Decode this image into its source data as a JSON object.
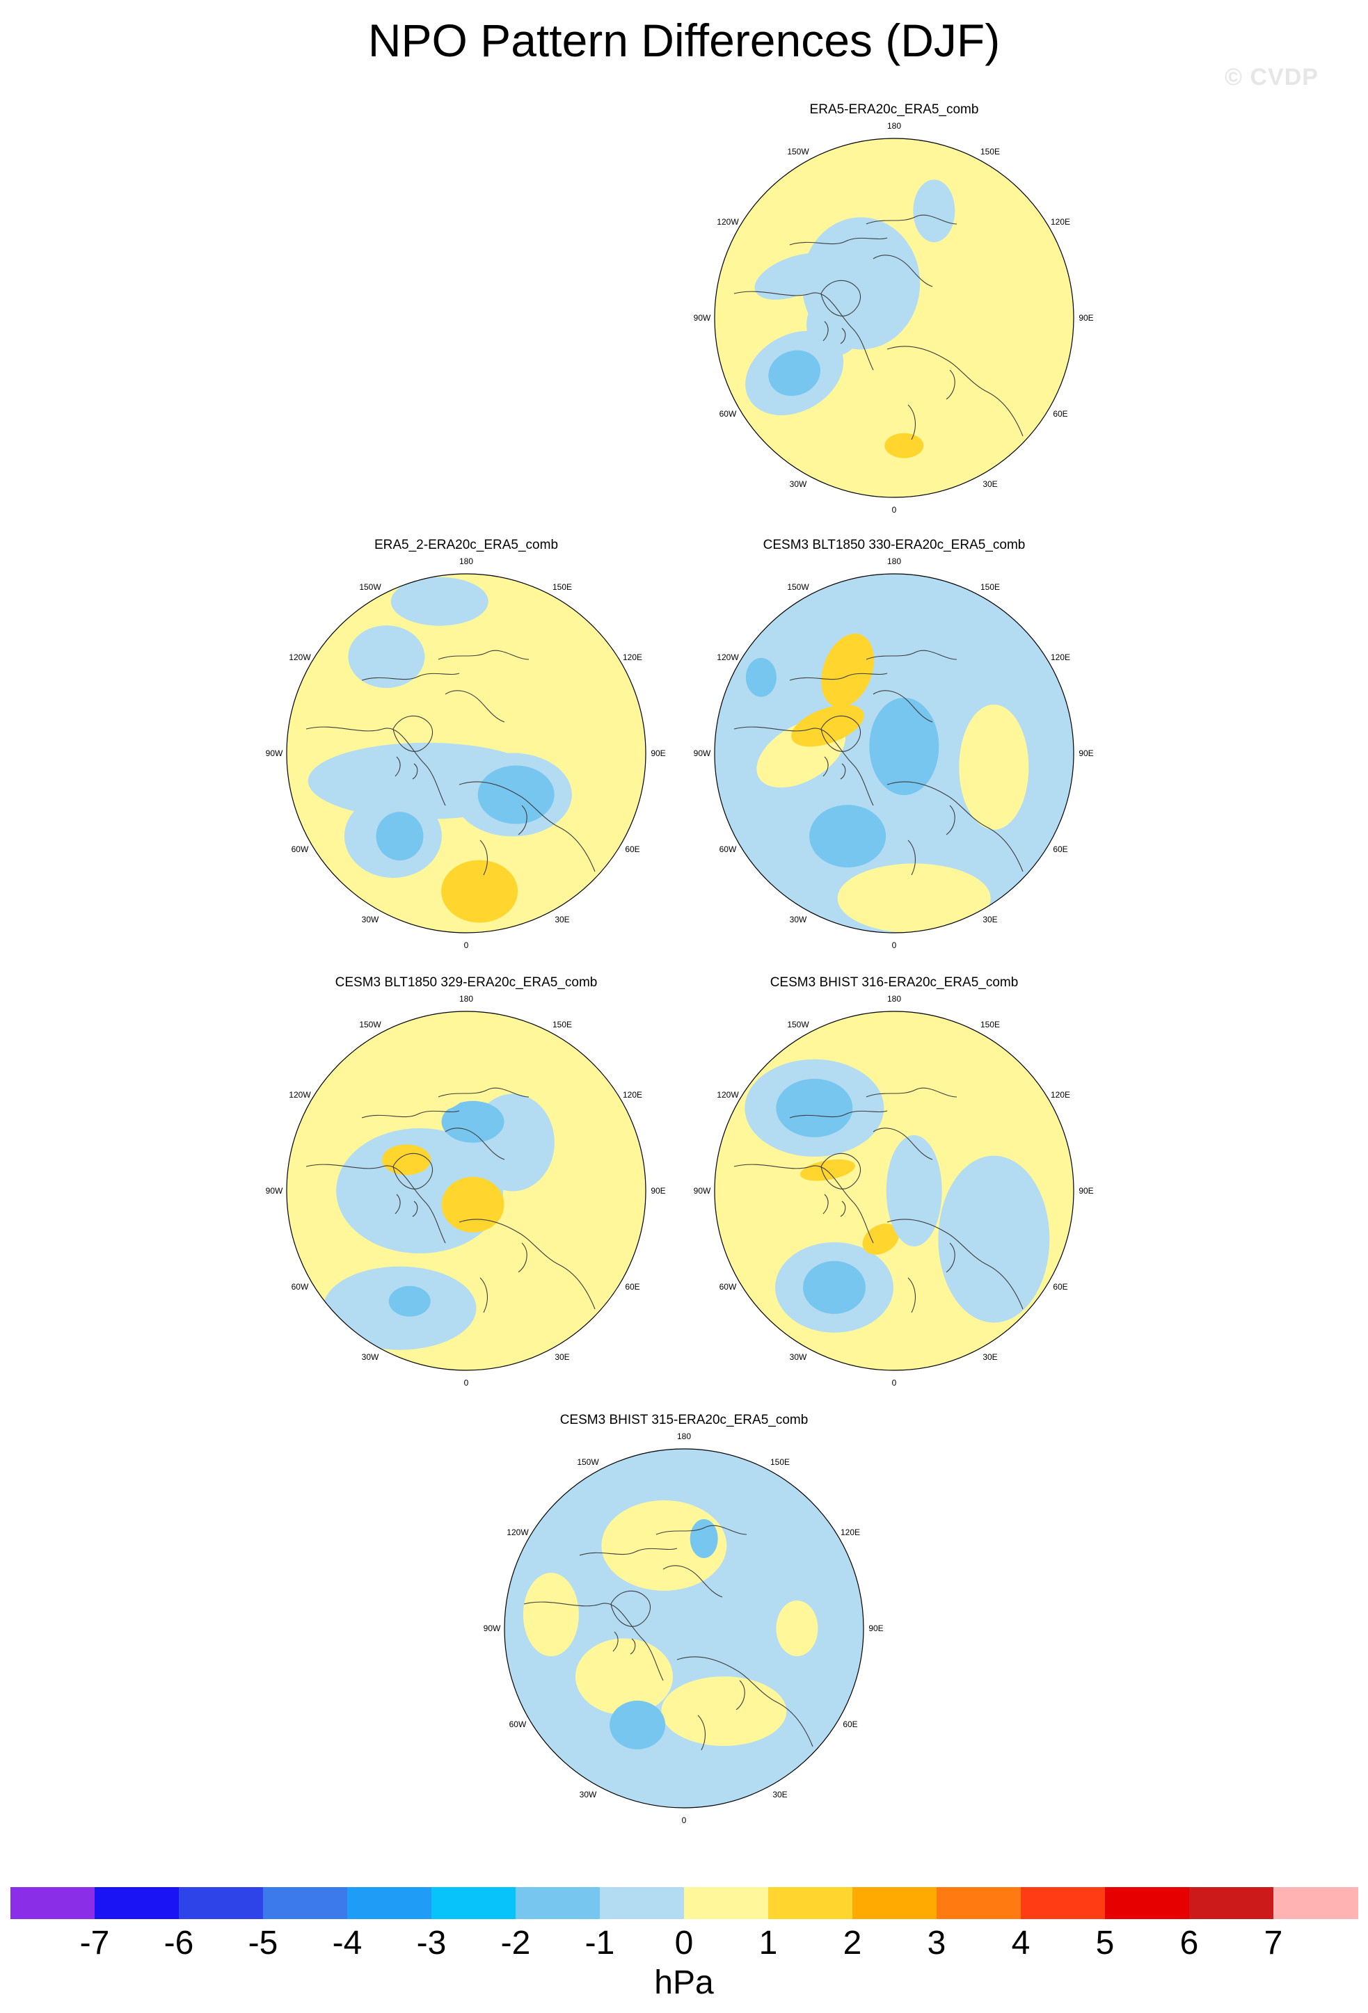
{
  "title": "NPO Pattern Differences (DJF)",
  "watermark": "© CVDP",
  "lon_labels": [
    "180",
    "150E",
    "120E",
    "90E",
    "60E",
    "30E",
    "0",
    "30W",
    "60W",
    "90W",
    "120W",
    "150W"
  ],
  "palette": {
    "n3": "#5aaaf0",
    "n2": "#77c6f0",
    "n1": "#b3dcf2",
    "p1": "#fff79a",
    "p2": "#ffd52e",
    "coast": "#3c3c3c"
  },
  "panels": [
    {
      "id": "era5",
      "title": "ERA5-ERA20c_ERA5_comb",
      "base": "p1"
    },
    {
      "id": "era5_2",
      "title": "ERA5_2-ERA20c_ERA5_comb",
      "base": "p1"
    },
    {
      "id": "blt330",
      "title": "CESM3 BLT1850 330-ERA20c_ERA5_comb",
      "base": "n1"
    },
    {
      "id": "blt329",
      "title": "CESM3 BLT1850 329-ERA20c_ERA5_comb",
      "base": "p1"
    },
    {
      "id": "bhist316",
      "title": "CESM3 BHIST 316-ERA20c_ERA5_comb",
      "base": "p1"
    },
    {
      "id": "bhist315",
      "title": "CESM3 BHIST 315-ERA20c_ERA5_comb",
      "base": "n1"
    }
  ],
  "colorbar": {
    "colors": [
      "#8a2ee8",
      "#1a14f5",
      "#2e44e8",
      "#3c7aeb",
      "#1f9cf5",
      "#08c2fa",
      "#77c6f0",
      "#b3dcf2",
      "#fff79a",
      "#ffd52e",
      "#ffaa00",
      "#ff7b12",
      "#ff3c13",
      "#e60000",
      "#cc1a1a",
      "#ffb3b3"
    ],
    "ticks": [
      "-7",
      "-6",
      "-5",
      "-4",
      "-3",
      "-2",
      "-1",
      "0",
      "1",
      "2",
      "3",
      "4",
      "5",
      "6",
      "7"
    ],
    "units": "hPa"
  }
}
